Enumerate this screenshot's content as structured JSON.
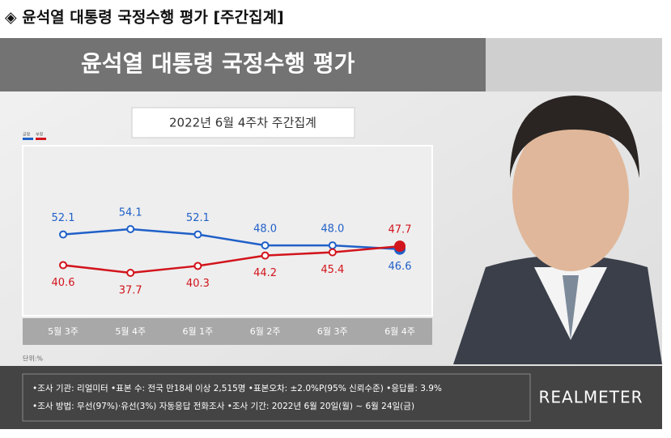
{
  "header": "◈ 윤석열 대통령 국정수행 평가 [주간집계]",
  "chart_data": {
    "type": "line",
    "title": "윤석열 대통령 국정수행 평가",
    "subtitle": "2022년 6월 4주차 주간집계",
    "categories": [
      "5월 3주",
      "5월 4주",
      "6월 1주",
      "6월 2주",
      "6월 3주",
      "6월 4주"
    ],
    "series": [
      {
        "name": "긍정",
        "color": "#2060c8",
        "values": [
          52.1,
          54.1,
          52.1,
          48.0,
          48.0,
          46.6
        ],
        "value_labels": [
          "52.1",
          "54.1",
          "52.1",
          "48.0",
          "48.0",
          "46.6"
        ]
      },
      {
        "name": "부정",
        "color": "#d2141c",
        "values": [
          40.6,
          37.7,
          40.3,
          44.2,
          45.4,
          47.7
        ]
      }
    ],
    "unit_note": "단위:%"
  },
  "footer": {
    "notes": [
      "•조사 기관: 리얼미터 •표본 수: 전국 만18세 이상 2,515명 •표본오차: ±2.0%P(95% 신뢰수준) •응답률: 3.9%",
      "•조사 방법: 무선(97%)·유선(3%) 자동응답 전화조사 •조사 기간: 2022년 6월 20일(월) ~ 6월 24일(금)"
    ],
    "brand": "REALMETER"
  }
}
